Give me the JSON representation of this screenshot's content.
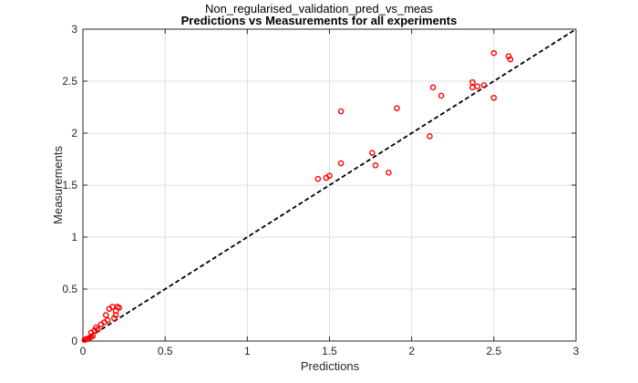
{
  "chart_data": {
    "type": "scatter",
    "figure_title": "Non_regularised_validation_pred_vs_meas",
    "title": "Predictions vs Measurements for all experiments",
    "xlabel": "Predictions",
    "ylabel": "Measurements",
    "xlim": [
      0,
      3
    ],
    "ylim": [
      0,
      3
    ],
    "xticks": [
      "0",
      "0.5",
      "1",
      "1.5",
      "2",
      "2.5",
      "3"
    ],
    "yticks": [
      "0",
      "0.5",
      "1",
      "1.5",
      "2",
      "2.5",
      "3"
    ],
    "xtick_values": [
      0,
      0.5,
      1,
      1.5,
      2,
      2.5,
      3
    ],
    "ytick_values": [
      0,
      0.5,
      1,
      1.5,
      2,
      2.5,
      3
    ],
    "grid": true,
    "marker_color": "#ff0000",
    "reference_line": {
      "x": [
        0,
        3
      ],
      "y": [
        0,
        3
      ],
      "style": "dashed",
      "color": "#000000"
    },
    "points": [
      [
        0.01,
        0.01
      ],
      [
        0.02,
        0.02
      ],
      [
        0.03,
        0.02
      ],
      [
        0.04,
        0.03
      ],
      [
        0.05,
        0.04
      ],
      [
        0.06,
        0.05
      ],
      [
        0.05,
        0.08
      ],
      [
        0.07,
        0.1
      ],
      [
        0.08,
        0.13
      ],
      [
        0.09,
        0.11
      ],
      [
        0.11,
        0.16
      ],
      [
        0.13,
        0.18
      ],
      [
        0.14,
        0.25
      ],
      [
        0.15,
        0.2
      ],
      [
        0.16,
        0.31
      ],
      [
        0.18,
        0.33
      ],
      [
        0.19,
        0.22
      ],
      [
        0.2,
        0.29
      ],
      [
        0.21,
        0.33
      ],
      [
        0.22,
        0.32
      ],
      [
        0.2,
        0.25
      ],
      [
        1.43,
        1.56
      ],
      [
        1.48,
        1.57
      ],
      [
        1.5,
        1.59
      ],
      [
        1.57,
        1.71
      ],
      [
        1.57,
        2.21
      ],
      [
        1.76,
        1.81
      ],
      [
        1.78,
        1.69
      ],
      [
        1.86,
        1.62
      ],
      [
        1.91,
        2.24
      ],
      [
        2.11,
        1.97
      ],
      [
        2.13,
        2.44
      ],
      [
        2.18,
        2.36
      ],
      [
        2.37,
        2.49
      ],
      [
        2.37,
        2.44
      ],
      [
        2.4,
        2.45
      ],
      [
        2.44,
        2.46
      ],
      [
        2.5,
        2.34
      ],
      [
        2.5,
        2.77
      ],
      [
        2.59,
        2.74
      ],
      [
        2.6,
        2.71
      ]
    ]
  }
}
